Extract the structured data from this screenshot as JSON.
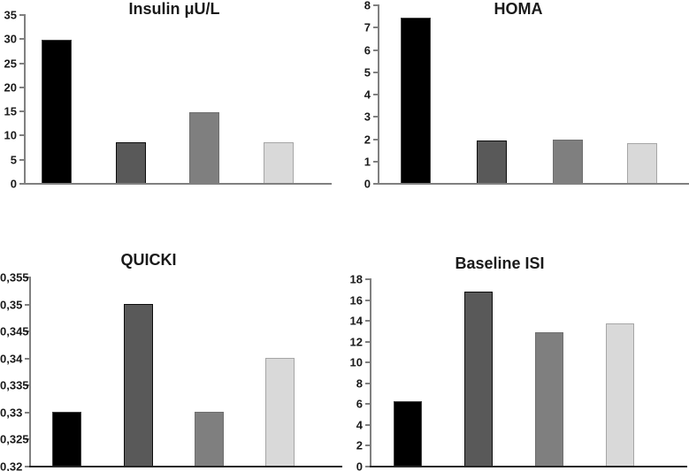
{
  "figure": {
    "background": "#ffffff",
    "axis_color": "#808080",
    "bottom_axis_color": "#262626",
    "text_color": "#1a1a1a"
  },
  "palette": {
    "bar_fills": [
      "#000000",
      "#595959",
      "#7f7f7f",
      "#d9d9d9"
    ],
    "bar_strokes": [
      "#404040",
      "#0d0d0d",
      "#6e6e6e",
      "#a6a6a6"
    ]
  },
  "chart_data": [
    {
      "type": "bar",
      "title": "Insulin μU/L",
      "xlabel": "",
      "ylabel": "",
      "values": [
        29.7,
        8.5,
        14.6,
        8.4
      ],
      "ylim": [
        0,
        35
      ],
      "ytick_step": 5,
      "yticks": [
        "35",
        "30",
        "25",
        "20",
        "15",
        "10",
        "5",
        "0"
      ],
      "grid": false,
      "legend": false
    },
    {
      "type": "bar",
      "title": "HOMA",
      "xlabel": "",
      "ylabel": "",
      "values": [
        7.4,
        1.9,
        1.95,
        1.8
      ],
      "ylim": [
        0,
        8
      ],
      "ytick_step": 1,
      "yticks": [
        "8",
        "7",
        "6",
        "5",
        "4",
        "3",
        "2",
        "1",
        "0"
      ],
      "grid": false,
      "legend": false
    },
    {
      "type": "bar",
      "title": "QUICKI",
      "xlabel": "",
      "ylabel": "",
      "values": [
        0.33,
        0.35,
        0.33,
        0.34
      ],
      "ylim": [
        0.32,
        0.355
      ],
      "ytick_step": 0.005,
      "yticks": [
        "0,355",
        "0,35",
        "0,345",
        "0,34",
        "0,335",
        "0,33",
        "0,325",
        "0,32"
      ],
      "grid": false,
      "legend": false
    },
    {
      "type": "bar",
      "title": "Baseline ISI",
      "xlabel": "",
      "ylabel": "",
      "values": [
        6.2,
        16.7,
        12.8,
        13.7
      ],
      "ylim": [
        0,
        18
      ],
      "ytick_step": 2,
      "yticks": [
        "18",
        "16",
        "14",
        "12",
        "10",
        "8",
        "6",
        "4",
        "2",
        "0"
      ],
      "grid": false,
      "legend": false
    }
  ]
}
